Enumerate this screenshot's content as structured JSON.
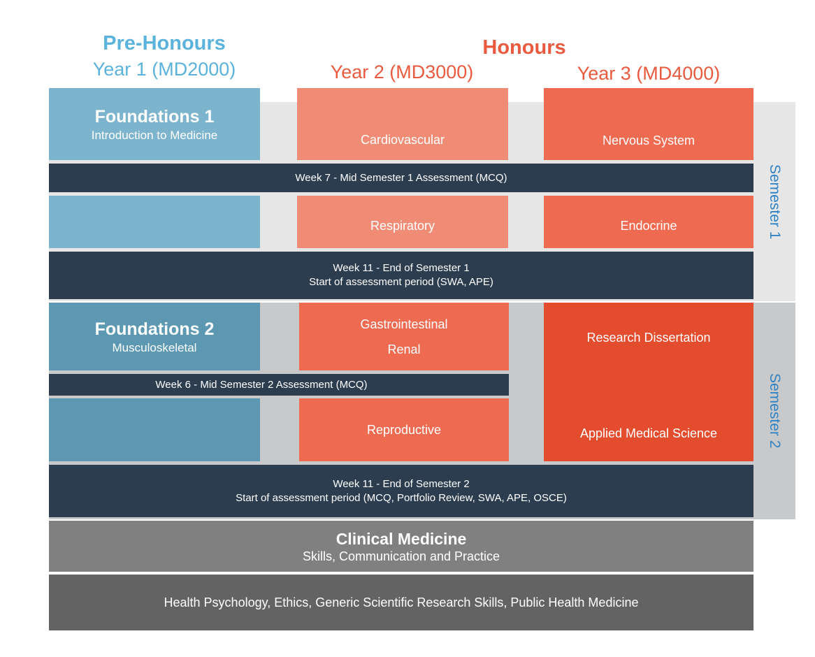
{
  "headers": {
    "pre_honours": "Pre-Honours",
    "year1": "Year 1 (MD2000)",
    "honours": "Honours",
    "year2": "Year 2 (MD3000)",
    "year3": "Year 3 (MD4000)"
  },
  "semesters": {
    "semester1": "Semester 1",
    "semester2": "Semester 2"
  },
  "year1": {
    "foundations1_title": "Foundations 1",
    "foundations1_subtitle": "Introduction to Medicine",
    "foundations2_title": "Foundations 2",
    "foundations2_subtitle": "Musculoskeletal"
  },
  "year2": {
    "cardiovascular": "Cardiovascular",
    "respiratory": "Respiratory",
    "gastrointestinal": "Gastrointestinal",
    "renal": "Renal",
    "reproductive": "Reproductive"
  },
  "year3": {
    "nervous_system": "Nervous System",
    "endocrine": "Endocrine",
    "research_dissertation": "Research Dissertation",
    "applied_medical_science": "Applied Medical Science"
  },
  "assessments": {
    "week7": "Week 7 - Mid Semester 1 Assessment (MCQ)",
    "week11_s1_line1": "Week 11 - End of Semester 1",
    "week11_s1_line2": "Start of assessment period (SWA, APE)",
    "week6": "Week 6 - Mid Semester 2 Assessment (MCQ)",
    "week11_s2_line1": "Week 11 - End of Semester 2",
    "week11_s2_line2": "Start of assessment period (MCQ, Portfolio Review, SWA, APE, OSCE)"
  },
  "clinical": {
    "title": "Clinical Medicine",
    "subtitle": "Skills, Communication and Practice"
  },
  "generic": {
    "text": "Health Psychology, Ethics, Generic Scientific Research Skills, Public Health Medicine"
  },
  "colors": {
    "pre_honours": "#5bb3db",
    "honours": "#e95a3f",
    "semester_label": "#2f82c4",
    "assessment_bar": "#2c3d4f",
    "clinical": "#808080",
    "generic": "#636363"
  }
}
